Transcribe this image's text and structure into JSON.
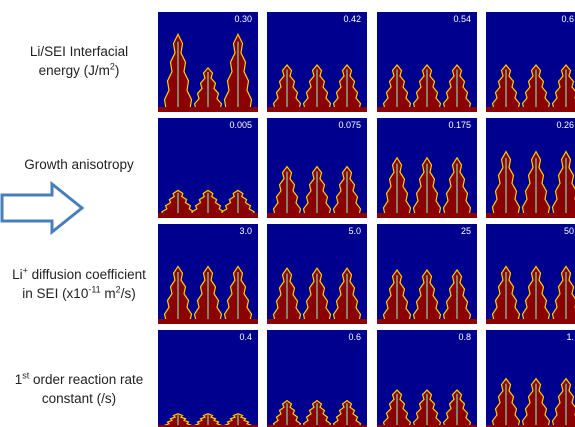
{
  "rows": [
    {
      "label": {
        "line1": "Li/SEI Interfacial",
        "line2a": "energy (J/m",
        "line2sup": "2",
        "line2b": ")"
      },
      "panels": [
        "0.30",
        "0.42",
        "0.54",
        "0.6"
      ]
    },
    {
      "label": {
        "line1": "Growth anisotropy"
      },
      "panels": [
        "0.005",
        "0.075",
        "0.175",
        "0.26"
      ]
    },
    {
      "label": {
        "line1a": "Li",
        "line1sup": "+",
        "line1b": " diffusion coefficient",
        "line2a": "in SEI (x10",
        "line2sup1": "-11",
        "line2b": " m",
        "line2sup2": "2",
        "line2c": "/s)"
      },
      "panels": [
        "3.0",
        "5.0",
        "25",
        "50"
      ]
    },
    {
      "label": {
        "line1a": "1",
        "line1sup": "st",
        "line1b": " order reaction rate",
        "line2": "constant (/s)"
      },
      "panels": [
        "0.4",
        "0.6",
        "0.8",
        "1."
      ]
    }
  ]
}
